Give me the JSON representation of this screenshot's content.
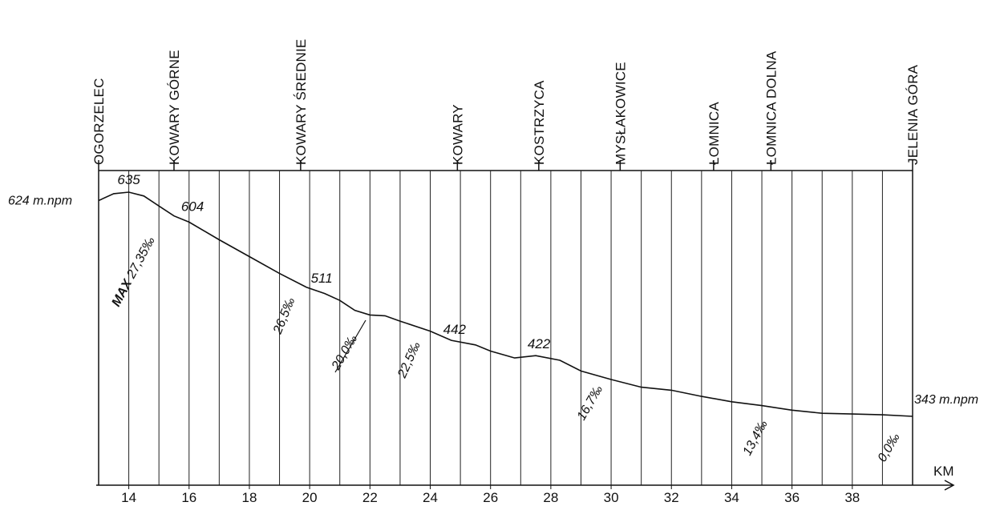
{
  "chart_data": {
    "type": "line",
    "xlabel": "KM",
    "xlim": [
      13,
      40
    ],
    "ylim": [
      330,
      645
    ],
    "x_ticks": [
      14,
      16,
      18,
      20,
      22,
      24,
      26,
      28,
      30,
      32,
      34,
      36,
      38
    ],
    "x_tick_labels": [
      "14",
      "16",
      "18",
      "20",
      "22",
      "24",
      "26",
      "28",
      "30",
      "32",
      "34",
      "36",
      "38"
    ],
    "x_grid_km": [
      14,
      15,
      16,
      17,
      18,
      19,
      20,
      21,
      22,
      23,
      24,
      25,
      26,
      27,
      28,
      29,
      30,
      31,
      32,
      33,
      34,
      35,
      36,
      37,
      38,
      39
    ],
    "stations": [
      {
        "name": "OGORZELEC",
        "km": 13.0
      },
      {
        "name": "KOWARY GÓRNE",
        "km": 15.5
      },
      {
        "name": "KOWARY ŚREDNIE",
        "km": 19.7
      },
      {
        "name": "KOWARY",
        "km": 24.9
      },
      {
        "name": "KOSTRZYCA",
        "km": 27.6
      },
      {
        "name": "MYSŁAKOWICE",
        "km": 30.3
      },
      {
        "name": "ŁOMNICA",
        "km": 33.4
      },
      {
        "name": "ŁOMNICA DOLNA",
        "km": 35.3
      },
      {
        "name": "JELENIA GÓRA",
        "km": 40.0
      }
    ],
    "series": [
      {
        "x": [
          13.0,
          13.5,
          14.0,
          14.5,
          15.0,
          15.5,
          16.0,
          17.0,
          18.0,
          19.0,
          19.9,
          20.5,
          21.0,
          21.5,
          22.0,
          22.5,
          23.0,
          24.0,
          24.7,
          25.5,
          26.0,
          26.8,
          27.5,
          28.3,
          29.0,
          30.0,
          31.0,
          32.0,
          33.0,
          34.0,
          35.0,
          36.0,
          37.0,
          38.0,
          39.0,
          40.0
        ],
        "y": [
          624,
          633,
          635,
          630,
          617,
          604,
          596,
          573,
          551,
          529,
          511,
          503,
          494,
          481,
          475,
          474,
          467,
          454,
          442,
          436,
          428,
          419,
          422,
          416,
          402,
          391,
          381,
          377,
          369,
          362,
          357,
          351,
          347,
          346,
          345,
          343
        ]
      }
    ],
    "elevation_labels": [
      {
        "text": "624 m.npm",
        "km": 13.0,
        "elev": 624
      },
      {
        "text": "635",
        "km": 14.0,
        "elev": 635
      },
      {
        "text": "604",
        "km": 15.9,
        "elev": 604
      },
      {
        "text": "511",
        "km": 20.0,
        "elev": 511
      },
      {
        "text": "442",
        "km": 24.7,
        "elev": 442
      },
      {
        "text": "422",
        "km": 27.5,
        "elev": 422
      },
      {
        "text": "343 m.npm",
        "km": 40.0,
        "elev": 343
      }
    ],
    "gradient_labels": [
      {
        "text": "MAX 27,35‰",
        "km": 14.3,
        "bold_prefix": "MAX"
      },
      {
        "text": "26,5‰",
        "km": 19.0
      },
      {
        "text": "20,0‰",
        "km": 21.4
      },
      {
        "text": "22,5‰",
        "km": 23.6
      },
      {
        "text": "16,7‰",
        "km": 29.5
      },
      {
        "text": "13,4‰",
        "km": 35.0
      },
      {
        "text": "0,0‰",
        "km": 39.3
      }
    ]
  }
}
